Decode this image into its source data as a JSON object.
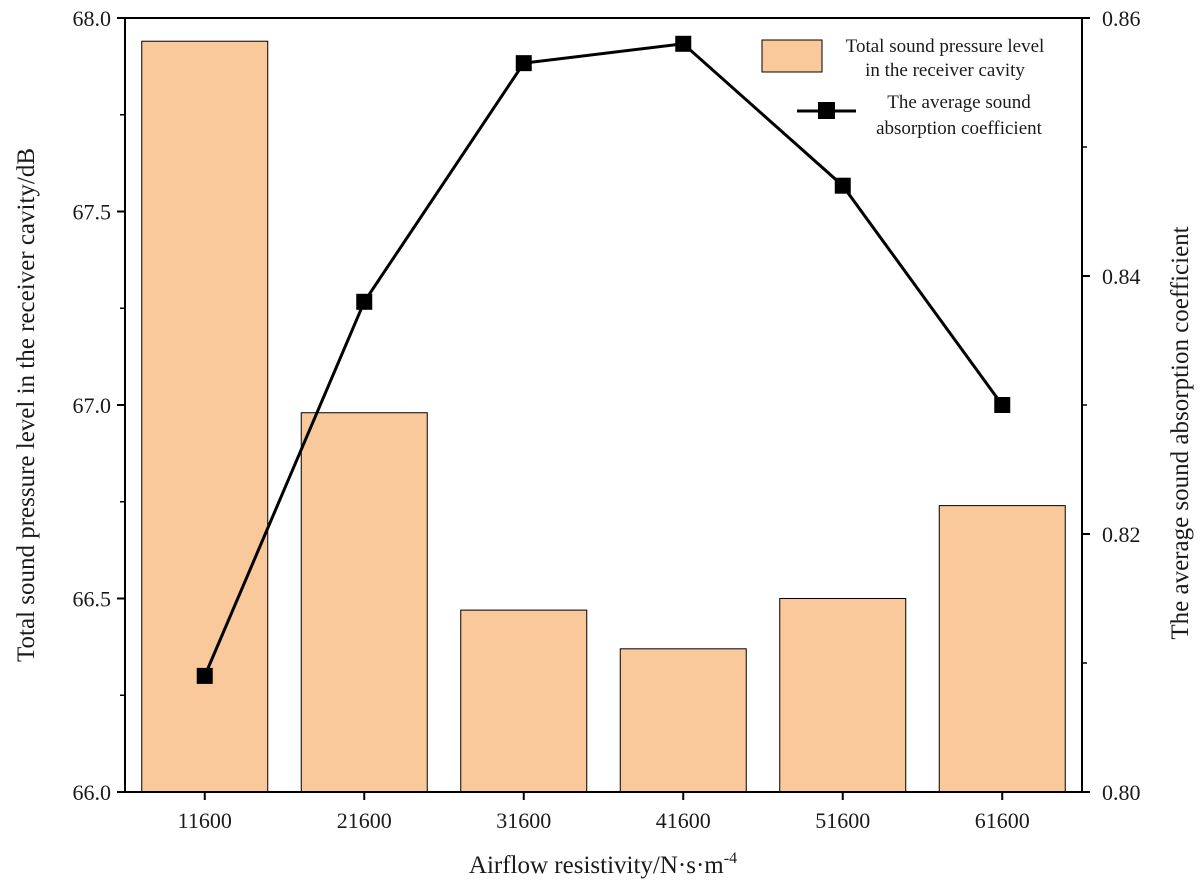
{
  "chart_data": {
    "type": "bar+line",
    "categories": [
      "11600",
      "21600",
      "31600",
      "41600",
      "51600",
      "61600"
    ],
    "xlabel": "Airflow resistivity/N·s·m",
    "xlabel_sup": "-4",
    "ylabel_left": "Total sound pressure level in the receiver cavity/dB",
    "ylabel_right": "The average sound absorption coefficient",
    "y_left": {
      "range": [
        66.0,
        68.0
      ],
      "ticks": [
        "66.0",
        "66.5",
        "67.0",
        "67.5",
        "68.0"
      ]
    },
    "y_right": {
      "range": [
        0.8,
        0.86
      ],
      "ticks": [
        "0.80",
        "0.82",
        "0.84",
        "0.86"
      ]
    },
    "series": [
      {
        "name_lines": [
          "Total sound pressure level",
          "in the receiver cavity"
        ],
        "kind": "bar",
        "axis": "left",
        "color": "#f9c89b",
        "values": [
          67.94,
          66.98,
          66.47,
          66.37,
          66.5,
          66.74
        ]
      },
      {
        "name_lines": [
          "The average sound",
          "absorption coefficient"
        ],
        "kind": "line",
        "axis": "right",
        "color": "#000000",
        "marker": "square",
        "values": [
          0.809,
          0.838,
          0.8565,
          0.858,
          0.847,
          0.83
        ]
      }
    ],
    "legend_position": "top-right",
    "grid": false
  }
}
